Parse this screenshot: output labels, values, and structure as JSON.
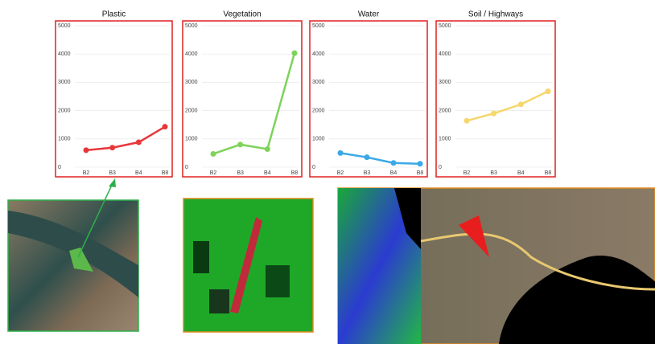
{
  "chart_data": [
    {
      "type": "line",
      "title": "Plastic",
      "categories": [
        "B2",
        "B3",
        "B4",
        "B8"
      ],
      "values": [
        600,
        690,
        880,
        1430
      ],
      "color": "#e8373a",
      "ylim": [
        0,
        5000
      ],
      "yticks": [
        0,
        1000,
        2000,
        3000,
        4000,
        5000
      ],
      "grid": true
    },
    {
      "type": "line",
      "title": "Vegetation",
      "categories": [
        "B2",
        "B3",
        "B4",
        "B8"
      ],
      "values": [
        470,
        800,
        640,
        4030
      ],
      "color": "#7ed35a",
      "ylim": [
        0,
        5000
      ],
      "yticks": [
        0,
        1000,
        2000,
        3000,
        4000,
        5000
      ],
      "grid": true
    },
    {
      "type": "line",
      "title": "Water",
      "categories": [
        "B2",
        "B3",
        "B4",
        "B8"
      ],
      "values": [
        500,
        350,
        150,
        120
      ],
      "color": "#3aa9e6",
      "ylim": [
        0,
        5000
      ],
      "yticks": [
        0,
        1000,
        2000,
        3000,
        4000,
        5000
      ],
      "grid": true
    },
    {
      "type": "line",
      "title": "Soil / Highways",
      "categories": [
        "B2",
        "B3",
        "B4",
        "B8"
      ],
      "values": [
        1640,
        1900,
        2220,
        2680
      ],
      "color": "#f5d76e",
      "ylim": [
        0,
        5000
      ],
      "yticks": [
        0,
        1000,
        2000,
        3000,
        4000,
        5000
      ],
      "grid": true
    }
  ]
}
